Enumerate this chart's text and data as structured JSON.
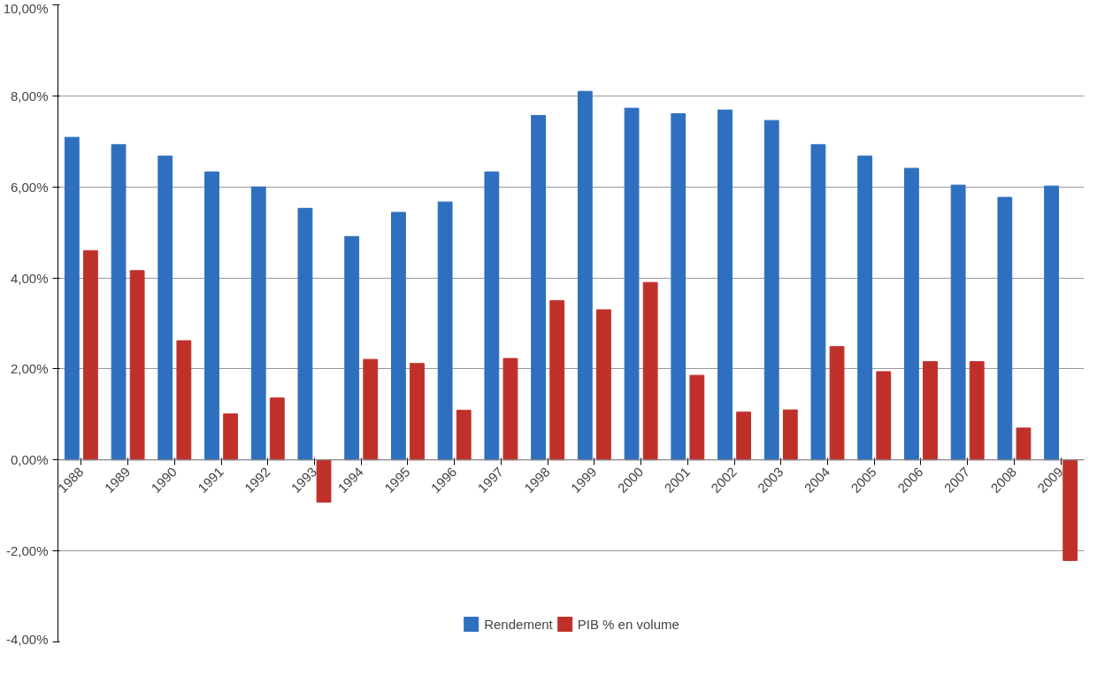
{
  "chart_data": {
    "type": "bar",
    "categories": [
      "1988",
      "1989",
      "1990",
      "1991",
      "1992",
      "1993",
      "1994",
      "1995",
      "1996",
      "1997",
      "1998",
      "1999",
      "2000",
      "2001",
      "2002",
      "2003",
      "2004",
      "2005",
      "2006",
      "2007",
      "2008",
      "2009"
    ],
    "series": [
      {
        "name": "Rendement",
        "color": "#2e6fbf",
        "values": [
          7.09,
          6.93,
          6.68,
          6.33,
          6.0,
          5.53,
          4.91,
          5.44,
          5.67,
          6.33,
          7.57,
          8.1,
          7.73,
          7.61,
          7.69,
          7.46,
          6.93,
          6.68,
          6.41,
          6.04,
          5.77,
          6.02
        ]
      },
      {
        "name": "PIB % en volume",
        "color": "#c0302b",
        "values": [
          4.6,
          4.16,
          2.62,
          1.01,
          1.36,
          -0.93,
          2.21,
          2.12,
          1.09,
          2.23,
          3.5,
          3.3,
          3.9,
          1.86,
          1.05,
          1.1,
          2.49,
          1.94,
          2.16,
          2.16,
          0.7,
          -2.21
        ]
      }
    ],
    "ylim": [
      -4,
      10
    ],
    "yticks": [
      {
        "value": -4,
        "label": "-4,00%"
      },
      {
        "value": -2,
        "label": "-2,00%"
      },
      {
        "value": 0,
        "label": "0,00%"
      },
      {
        "value": 2,
        "label": "2,00%"
      },
      {
        "value": 4,
        "label": "4,00%"
      },
      {
        "value": 6,
        "label": "6,00%"
      },
      {
        "value": 8,
        "label": "8,00%"
      },
      {
        "value": 10,
        "label": "10,00%"
      }
    ],
    "grid": "y",
    "legend": "bottom"
  }
}
